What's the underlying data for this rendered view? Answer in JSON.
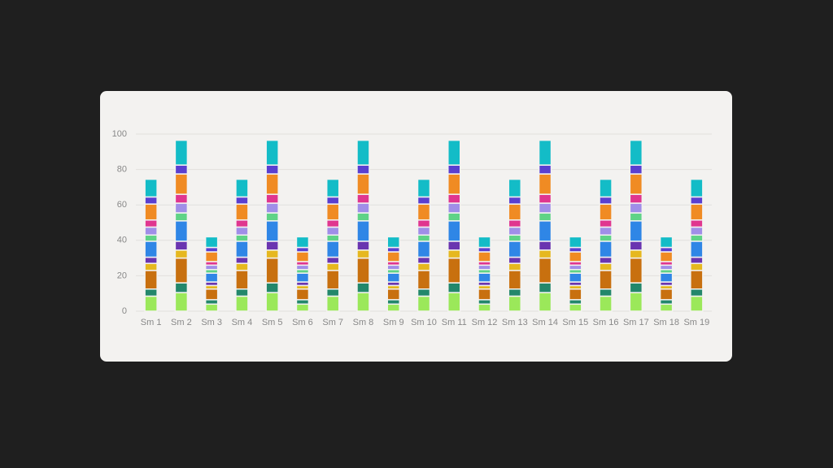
{
  "chart_data": {
    "type": "bar",
    "stacked": true,
    "categories": [
      "Sm 1",
      "Sm 2",
      "Sm 3",
      "Sm 4",
      "Sm 5",
      "Sm 6",
      "Sm 7",
      "Sm 8",
      "Sm 9",
      "Sm 10",
      "Sm 11",
      "Sm 12",
      "Sm 13",
      "Sm 14",
      "Sm 15",
      "Sm 16",
      "Sm 17",
      "Sm 18",
      "Sm 19"
    ],
    "ylim": [
      0,
      100
    ],
    "yticks": [
      0,
      20,
      40,
      60,
      80,
      100
    ],
    "grid": true,
    "series": [
      {
        "color": "#9be85a",
        "values": [
          8.5,
          10.5,
          4,
          8.5,
          10.5,
          4,
          8.5,
          10.5,
          4,
          8.5,
          10.5,
          4,
          8.5,
          10.5,
          4,
          8.5,
          10.5,
          4,
          8.5
        ]
      },
      {
        "color": "#23876b",
        "values": [
          4,
          5.5,
          2.5,
          4,
          5.5,
          2.5,
          4,
          5.5,
          2.5,
          4,
          5.5,
          2.5,
          4,
          5.5,
          2.5,
          4,
          5.5,
          2.5,
          4
        ]
      },
      {
        "color": "#c8700f",
        "values": [
          10.5,
          14,
          6,
          10.5,
          14,
          6,
          10.5,
          14,
          6,
          10.5,
          14,
          6,
          10.5,
          14,
          6,
          10.5,
          14,
          6,
          10.5
        ]
      },
      {
        "color": "#e6b81f",
        "values": [
          4,
          4.5,
          2,
          4,
          4.5,
          2,
          4,
          4.5,
          2,
          4,
          4.5,
          2,
          4,
          4.5,
          2,
          4,
          4.5,
          2,
          4
        ]
      },
      {
        "color": "#6a35b0",
        "values": [
          3.5,
          5,
          2,
          3.5,
          5,
          2,
          3.5,
          5,
          2,
          3.5,
          5,
          2,
          3.5,
          5,
          2,
          3.5,
          5,
          2,
          3.5
        ]
      },
      {
        "color": "#2f86e6",
        "values": [
          9,
          11.5,
          5,
          9,
          11.5,
          5,
          9,
          11.5,
          5,
          9,
          11.5,
          5,
          9,
          11.5,
          5,
          9,
          11.5,
          5,
          9
        ]
      },
      {
        "color": "#5fd387",
        "values": [
          3.5,
          4.5,
          2,
          3.5,
          4.5,
          2,
          3.5,
          4.5,
          2,
          3.5,
          4.5,
          2,
          3.5,
          4.5,
          2,
          3.5,
          4.5,
          2,
          3.5
        ]
      },
      {
        "color": "#a08ee8",
        "values": [
          4.5,
          5.5,
          2.5,
          4.5,
          5.5,
          2.5,
          4.5,
          5.5,
          2.5,
          4.5,
          5.5,
          2.5,
          4.5,
          5.5,
          2.5,
          4.5,
          5.5,
          2.5,
          4.5
        ]
      },
      {
        "color": "#e0368f",
        "values": [
          4,
          5,
          2,
          4,
          5,
          2,
          4,
          5,
          2,
          4,
          5,
          2,
          4,
          5,
          2,
          4,
          5,
          2,
          4
        ]
      },
      {
        "color": "#f08b23",
        "values": [
          9,
          11.5,
          5.5,
          9,
          11.5,
          5.5,
          9,
          11.5,
          5.5,
          9,
          11.5,
          5.5,
          9,
          11.5,
          5.5,
          9,
          11.5,
          5.5,
          9
        ]
      },
      {
        "color": "#5a3fd0",
        "values": [
          4,
          5,
          2.5,
          4,
          5,
          2.5,
          4,
          5,
          2.5,
          4,
          5,
          2.5,
          4,
          5,
          2.5,
          4,
          5,
          2.5,
          4
        ]
      },
      {
        "color": "#13bcc7",
        "values": [
          10,
          14,
          6,
          10,
          14,
          6,
          10,
          14,
          6,
          10,
          14,
          6,
          10,
          14,
          6,
          10,
          14,
          6,
          10
        ]
      }
    ]
  }
}
